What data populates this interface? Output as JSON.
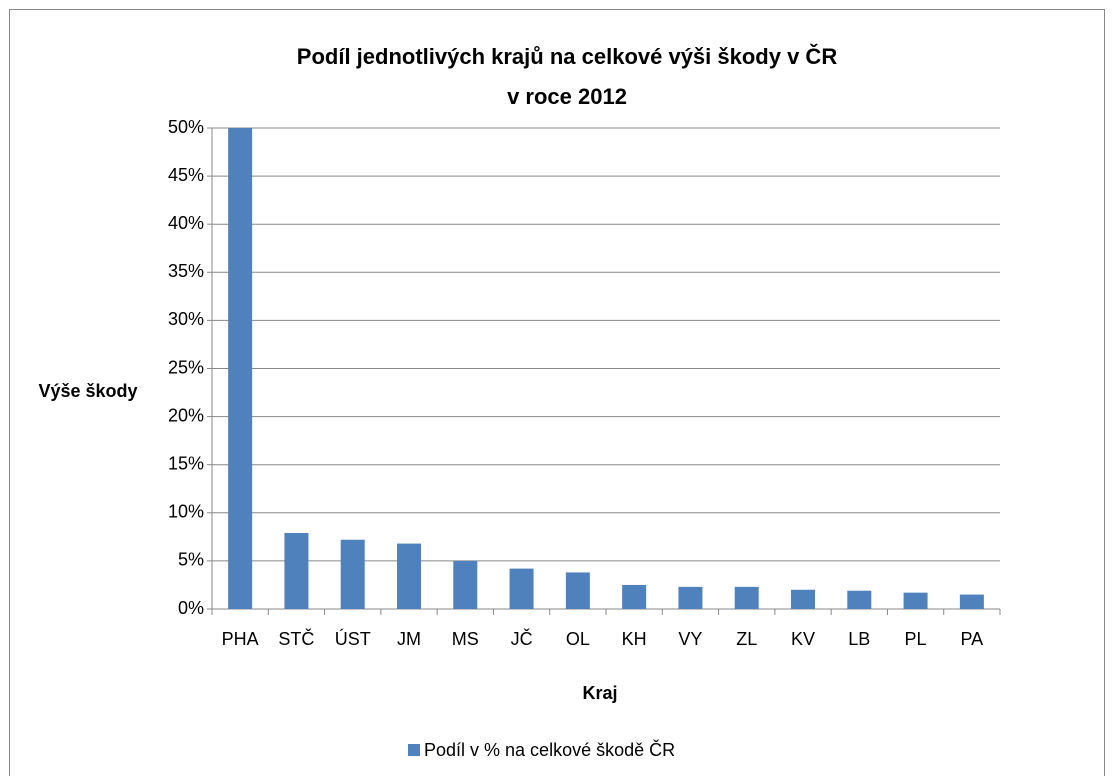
{
  "chart_data": {
    "type": "bar",
    "title": [
      "Podíl jednotlivých krajů na celkové výši škody v ČR",
      "v roce 2012"
    ],
    "y_label": "Výše škody",
    "x_label": "Kraj",
    "categories": [
      "PHA",
      "STČ",
      "ÚST",
      "JM",
      "MS",
      "JČ",
      "OL",
      "KH",
      "VY",
      "ZL",
      "KV",
      "LB",
      "PL",
      "PA"
    ],
    "series": [
      {
        "name": "Podíl v % na celkové škodě ČR",
        "color": "#4f81bd",
        "values": [
          50,
          7.9,
          7.2,
          6.8,
          5.0,
          4.2,
          3.8,
          2.5,
          2.3,
          2.3,
          2.0,
          1.9,
          1.7,
          1.5
        ]
      }
    ],
    "ylim": [
      0,
      50
    ],
    "yticks": [
      {
        "value": 0,
        "label": "0%"
      },
      {
        "value": 5,
        "label": "5%"
      },
      {
        "value": 10,
        "label": "10%"
      },
      {
        "value": 15,
        "label": "15%"
      },
      {
        "value": 20,
        "label": "20%"
      },
      {
        "value": 25,
        "label": "25%"
      },
      {
        "value": 30,
        "label": "30%"
      },
      {
        "value": 35,
        "label": "35%"
      },
      {
        "value": 40,
        "label": "40%"
      },
      {
        "value": 45,
        "label": "45%"
      },
      {
        "value": 50,
        "label": "50%"
      }
    ],
    "grid": true,
    "legend": "bottom"
  }
}
